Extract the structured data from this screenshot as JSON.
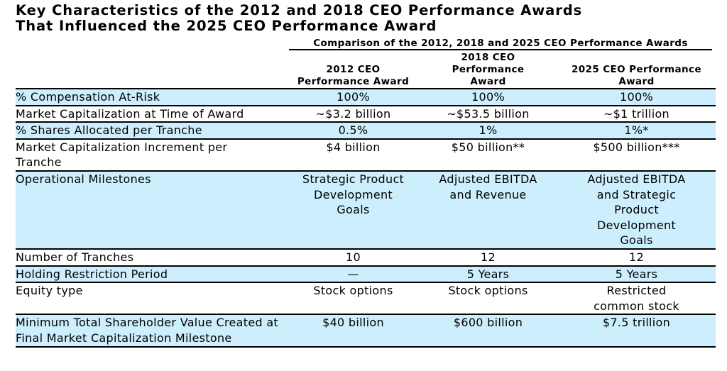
{
  "title_lines": [
    "Key Characteristics of the 2012 and 2018 CEO Performance Awards",
    "That Influenced the 2025 CEO Performance Award"
  ],
  "super_header": "Comparison of the 2012, 2018 and 2025 CEO Performance Awards",
  "columns": [
    [
      "2012 CEO",
      "Performance Award"
    ],
    [
      "2018 CEO",
      "Performance",
      "Award"
    ],
    [
      "2025 CEO Performance",
      "Award"
    ]
  ],
  "rows": [
    {
      "label": "% Compensation At-Risk",
      "values": [
        "100%",
        "100%",
        "100%"
      ],
      "shaded": true
    },
    {
      "label": "Market Capitalization at Time of Award",
      "values": [
        "~$3.2 billion",
        "~$53.5 billion",
        "~$1 trillion"
      ],
      "shaded": false
    },
    {
      "label": "% Shares Allocated per Tranche",
      "values": [
        "0.5%",
        "1%",
        "1%*"
      ],
      "shaded": true
    },
    {
      "label": "Market Capitalization Increment per Tranche",
      "values": [
        "$4 billion",
        "$50 billion**",
        "$500 billion***"
      ],
      "shaded": false
    },
    {
      "label": "Operational Milestones",
      "values": [
        "Strategic Product Development Goals",
        "Adjusted EBITDA and Revenue",
        "Adjusted EBITDA and Strategic Product Development Goals"
      ],
      "shaded": true
    },
    {
      "label": "Number of Tranches",
      "values": [
        "10",
        "12",
        "12"
      ],
      "shaded": false
    },
    {
      "label": "Holding Restriction Period",
      "values": [
        "—",
        "5 Years",
        "5 Years"
      ],
      "shaded": true
    },
    {
      "label": "Equity type",
      "values": [
        "Stock options",
        "Stock options",
        "Restricted common stock"
      ],
      "shaded": false
    },
    {
      "label": "Minimum Total Shareholder Value Created at Final Market Capitalization Milestone",
      "values": [
        "$40 billion",
        "$600 billion",
        "$7.5 trillion"
      ],
      "shaded": true
    }
  ],
  "colors": {
    "row_shade": "#cdeefc"
  }
}
